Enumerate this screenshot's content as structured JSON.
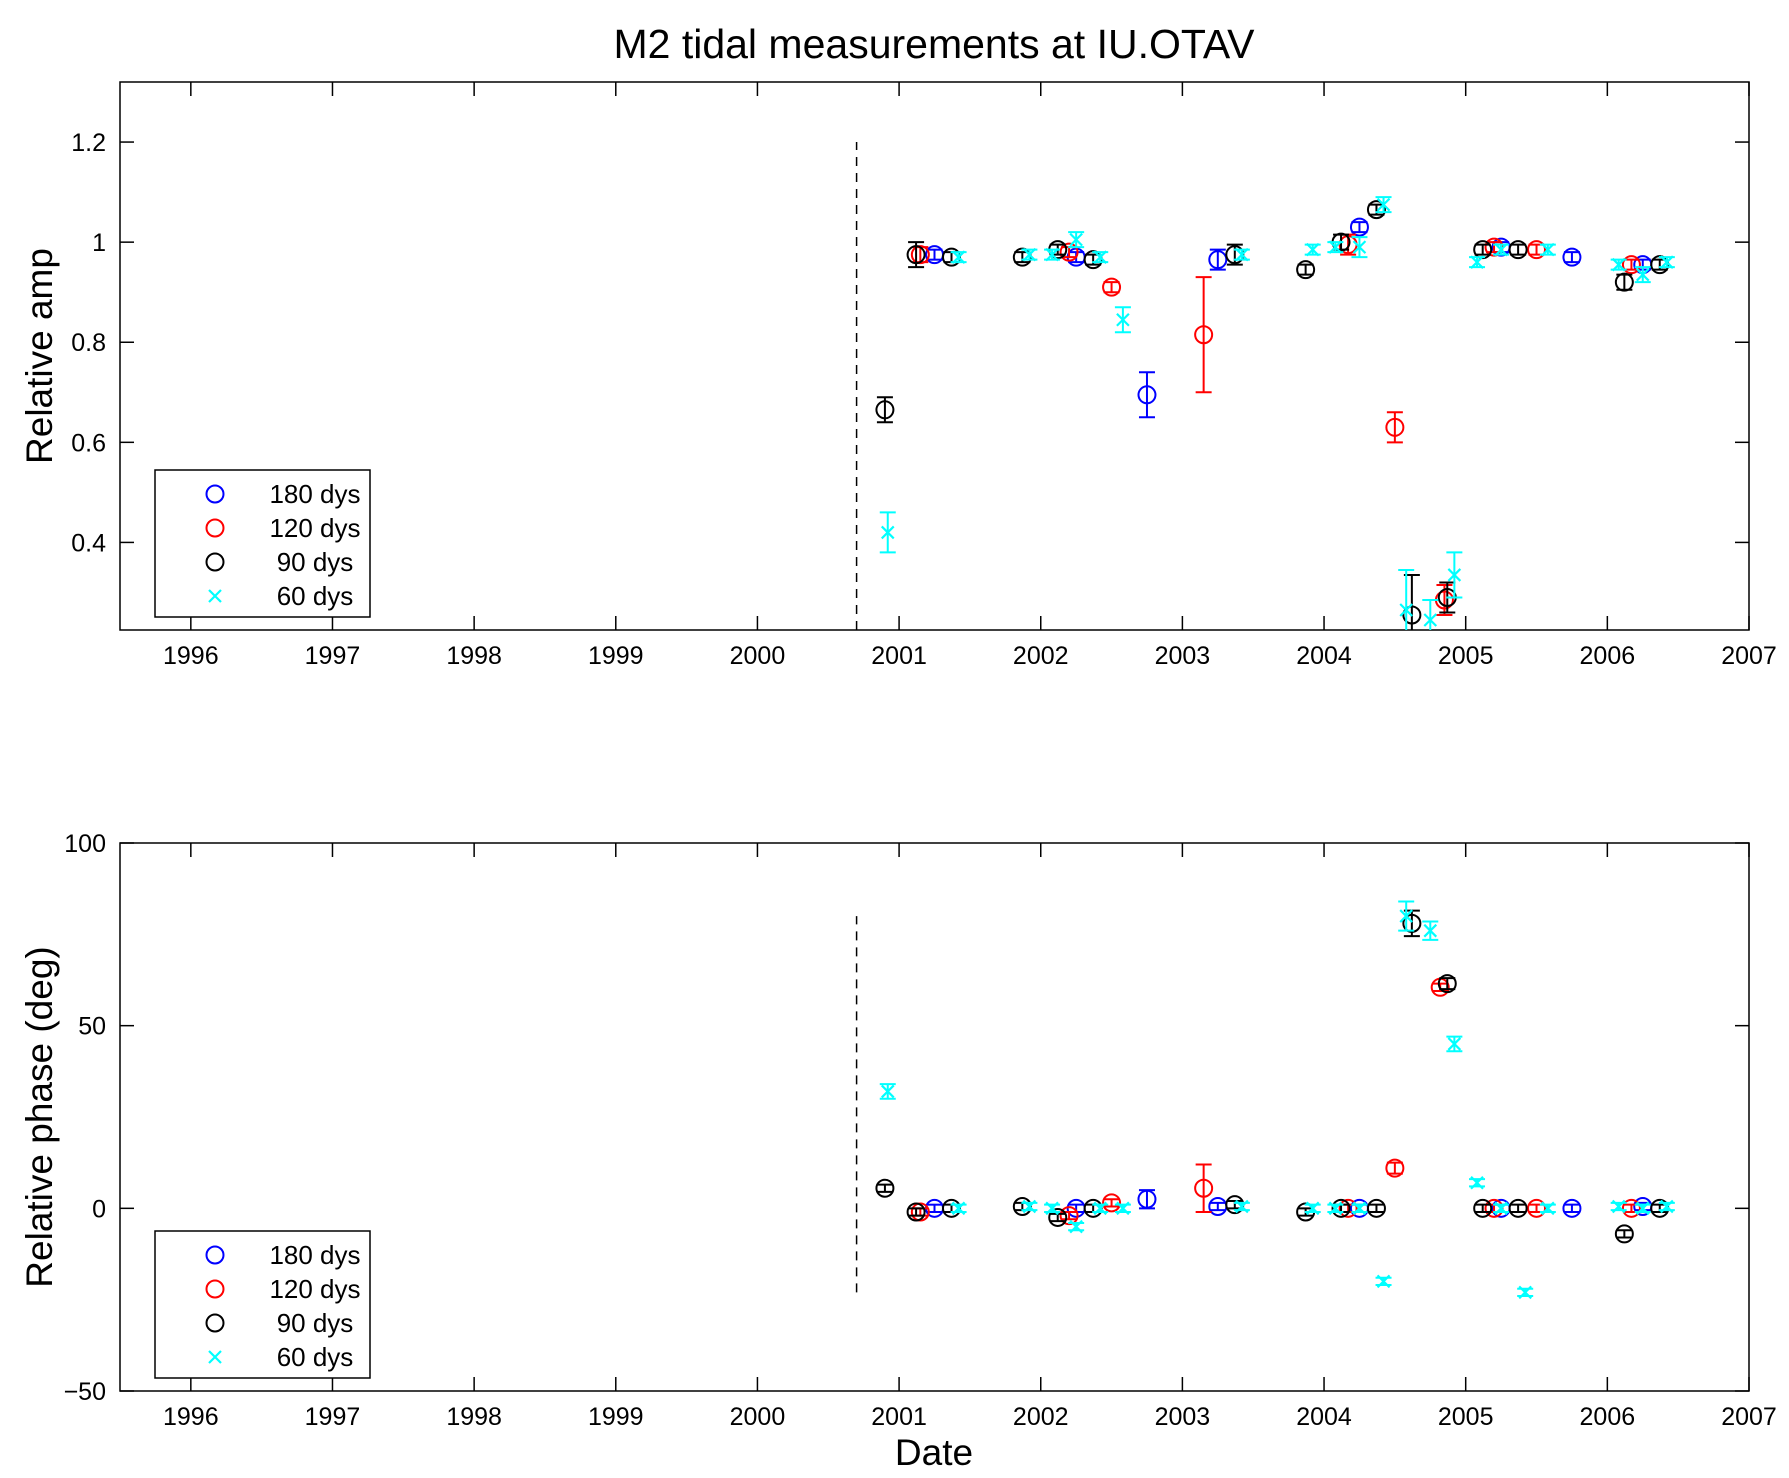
{
  "title": "M2 tidal measurements at IU.OTAV",
  "colors": {
    "180 dys": "#0000ff",
    "120 dys": "#ff0000",
    "90 dys": "#000000",
    "60 dys": "#00ffff"
  },
  "chart_data": [
    {
      "type": "scatter",
      "xlabel": "",
      "ylabel": "Relative amp",
      "xlim": [
        1995.5,
        2007
      ],
      "ylim": [
        0.225,
        1.32
      ],
      "xticks": [
        1996,
        1997,
        1998,
        1999,
        2000,
        2001,
        2002,
        2003,
        2004,
        2005,
        2006,
        2007
      ],
      "yticks": [
        0.4,
        0.6,
        0.8,
        1,
        1.2
      ],
      "ytick_labels": [
        "0.4",
        "0.6",
        "0.8",
        "1",
        "1.2"
      ],
      "vline": {
        "x": 2000.7,
        "y": [
          0.225,
          1.2
        ],
        "style": "dashed"
      },
      "legend": {
        "position": "bottom-left"
      },
      "series": [
        {
          "name": "180 dys",
          "marker": "circle",
          "points": [
            [
              2001.25,
              0.975,
              0.01
            ],
            [
              2002.25,
              0.97,
              0.01
            ],
            [
              2002.75,
              0.695,
              0.045
            ],
            [
              2003.25,
              0.965,
              0.02
            ],
            [
              2004.25,
              1.03,
              0.01
            ],
            [
              2005.25,
              0.99,
              0.01
            ],
            [
              2005.75,
              0.97,
              0.01
            ],
            [
              2006.25,
              0.955,
              0.01
            ]
          ]
        },
        {
          "name": "120 dys",
          "marker": "circle",
          "points": [
            [
              2001.15,
              0.975,
              0.015
            ],
            [
              2002.2,
              0.98,
              0.01
            ],
            [
              2002.5,
              0.91,
              0.01
            ],
            [
              2003.15,
              0.815,
              0.115
            ],
            [
              2004.17,
              0.995,
              0.02
            ],
            [
              2004.5,
              0.63,
              0.03
            ],
            [
              2004.85,
              0.285,
              0.03
            ],
            [
              2005.2,
              0.99,
              0.01
            ],
            [
              2005.5,
              0.985,
              0.01
            ],
            [
              2006.17,
              0.955,
              0.01
            ]
          ]
        },
        {
          "name": "90 dys",
          "marker": "circle",
          "points": [
            [
              2000.9,
              0.665,
              0.025
            ],
            [
              2001.12,
              0.975,
              0.025
            ],
            [
              2001.37,
              0.97,
              0.01
            ],
            [
              2001.87,
              0.97,
              0.01
            ],
            [
              2002.12,
              0.985,
              0.01
            ],
            [
              2002.37,
              0.965,
              0.01
            ],
            [
              2003.37,
              0.975,
              0.02
            ],
            [
              2003.87,
              0.945,
              0.01
            ],
            [
              2004.12,
              1.0,
              0.015
            ],
            [
              2004.37,
              1.065,
              0.01
            ],
            [
              2004.62,
              0.255,
              0.08
            ],
            [
              2004.87,
              0.29,
              0.03
            ],
            [
              2005.12,
              0.985,
              0.01
            ],
            [
              2005.37,
              0.985,
              0.01
            ],
            [
              2006.12,
              0.92,
              0.015
            ],
            [
              2006.37,
              0.955,
              0.01
            ]
          ]
        },
        {
          "name": "60 dys",
          "marker": "x",
          "points": [
            [
              2000.92,
              0.42,
              0.04
            ],
            [
              2001.42,
              0.97,
              0.01
            ],
            [
              2001.92,
              0.975,
              0.01
            ],
            [
              2002.08,
              0.975,
              0.01
            ],
            [
              2002.25,
              1.005,
              0.015
            ],
            [
              2002.42,
              0.97,
              0.01
            ],
            [
              2002.58,
              0.845,
              0.025
            ],
            [
              2003.42,
              0.975,
              0.01
            ],
            [
              2003.92,
              0.985,
              0.01
            ],
            [
              2004.08,
              0.99,
              0.01
            ],
            [
              2004.25,
              0.99,
              0.02
            ],
            [
              2004.42,
              1.075,
              0.015
            ],
            [
              2004.58,
              0.265,
              0.08
            ],
            [
              2004.75,
              0.245,
              0.04
            ],
            [
              2004.92,
              0.335,
              0.045
            ],
            [
              2005.08,
              0.96,
              0.01
            ],
            [
              2005.25,
              0.985,
              0.01
            ],
            [
              2005.58,
              0.985,
              0.01
            ],
            [
              2006.08,
              0.955,
              0.01
            ],
            [
              2006.25,
              0.935,
              0.015
            ],
            [
              2006.42,
              0.96,
              0.01
            ]
          ]
        }
      ]
    },
    {
      "type": "scatter",
      "xlabel": "Date",
      "ylabel": "Relative phase (deg)",
      "xlim": [
        1995.5,
        2007
      ],
      "ylim": [
        -50,
        100
      ],
      "xticks": [
        1996,
        1997,
        1998,
        1999,
        2000,
        2001,
        2002,
        2003,
        2004,
        2005,
        2006,
        2007
      ],
      "yticks": [
        -50,
        0,
        50,
        100
      ],
      "ytick_labels": [
        "−50",
        "0",
        "50",
        "100"
      ],
      "vline": {
        "x": 2000.7,
        "y": [
          -23,
          80
        ],
        "style": "dashed"
      },
      "legend": {
        "position": "bottom-left"
      },
      "series": [
        {
          "name": "180 dys",
          "marker": "circle",
          "points": [
            [
              2001.25,
              0,
              1
            ],
            [
              2002.25,
              0,
              1
            ],
            [
              2002.75,
              2.5,
              2.5
            ],
            [
              2003.25,
              0.5,
              1
            ],
            [
              2004.25,
              0,
              1
            ],
            [
              2005.25,
              0,
              1
            ],
            [
              2005.75,
              0,
              1
            ],
            [
              2006.25,
              0.5,
              1
            ]
          ]
        },
        {
          "name": "120 dys",
          "marker": "circle",
          "points": [
            [
              2001.15,
              -1,
              1
            ],
            [
              2002.2,
              -2,
              1
            ],
            [
              2002.5,
              1.5,
              1
            ],
            [
              2003.15,
              5.5,
              6.5
            ],
            [
              2004.17,
              0,
              1
            ],
            [
              2004.5,
              11,
              1.5
            ],
            [
              2004.82,
              60.5,
              1
            ],
            [
              2005.2,
              0,
              1
            ],
            [
              2005.5,
              0,
              1
            ],
            [
              2006.17,
              0,
              1
            ]
          ]
        },
        {
          "name": "90 dys",
          "marker": "circle",
          "points": [
            [
              2000.9,
              5.5,
              1
            ],
            [
              2001.12,
              -1,
              1
            ],
            [
              2001.37,
              0,
              1
            ],
            [
              2001.87,
              0.5,
              1
            ],
            [
              2002.12,
              -2.5,
              1
            ],
            [
              2002.37,
              0,
              1
            ],
            [
              2003.37,
              1,
              1
            ],
            [
              2003.87,
              -1,
              1
            ],
            [
              2004.12,
              0,
              1
            ],
            [
              2004.37,
              0,
              1
            ],
            [
              2004.62,
              78,
              3.5
            ],
            [
              2004.87,
              61.5,
              1.5
            ],
            [
              2005.12,
              0,
              1
            ],
            [
              2005.37,
              0,
              1
            ],
            [
              2006.12,
              -7,
              1
            ],
            [
              2006.37,
              0,
              1
            ]
          ]
        },
        {
          "name": "60 dys",
          "marker": "x",
          "points": [
            [
              2000.92,
              32,
              2
            ],
            [
              2001.42,
              0,
              1
            ],
            [
              2001.92,
              0.5,
              1
            ],
            [
              2002.08,
              0,
              1
            ],
            [
              2002.25,
              -5,
              1
            ],
            [
              2002.42,
              0,
              1
            ],
            [
              2002.58,
              0,
              1
            ],
            [
              2003.42,
              0.5,
              1
            ],
            [
              2003.92,
              0,
              1
            ],
            [
              2004.08,
              0,
              1
            ],
            [
              2004.25,
              0,
              1
            ],
            [
              2004.42,
              -20,
              1
            ],
            [
              2004.58,
              80,
              4
            ],
            [
              2004.75,
              76,
              2.5
            ],
            [
              2004.92,
              45,
              2
            ],
            [
              2005.08,
              7,
              1
            ],
            [
              2005.25,
              0,
              1
            ],
            [
              2005.42,
              -23,
              1
            ],
            [
              2005.58,
              0,
              1
            ],
            [
              2006.08,
              0.5,
              1
            ],
            [
              2006.25,
              0,
              1
            ],
            [
              2006.42,
              0.5,
              1
            ]
          ]
        }
      ]
    }
  ]
}
